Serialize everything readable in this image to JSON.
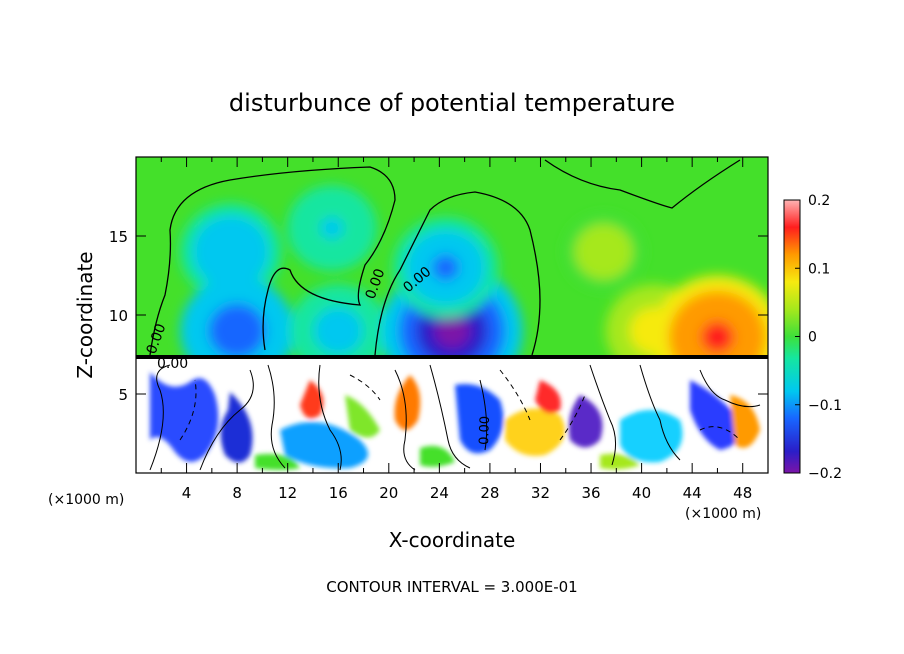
{
  "chart_data": {
    "type": "heatmap",
    "title": "disturbunce of potential temperature",
    "xlabel": "X-coordinate",
    "ylabel": "Z-coordinate",
    "x_unit_label": "(×1000 m)",
    "x_unit_label_right": "(×1000 m)",
    "xlim": [
      0,
      50
    ],
    "ylim": [
      0,
      20
    ],
    "x_ticks": [
      4,
      8,
      12,
      16,
      20,
      24,
      28,
      32,
      36,
      40,
      44,
      48
    ],
    "y_ticks": [
      5,
      10,
      15
    ],
    "colorbar": {
      "min": -0.2,
      "max": 0.2,
      "ticks": [
        0.2,
        0.1,
        0,
        -0.1,
        -0.2
      ],
      "tick_labels": [
        "0.2",
        "0.1",
        "0",
        "−0.1",
        "−0.2"
      ]
    },
    "contour_labels": [
      "0.00",
      "0.00",
      "0.00",
      "0.00",
      "0.00"
    ],
    "footer": "CONTOUR INTERVAL = 3.000E-01",
    "features": {
      "interface_height": 7.3,
      "upper_layer_anomalies": [
        {
          "x": 7.5,
          "z": 14,
          "value": -0.09
        },
        {
          "x": 15.5,
          "z": 15.5,
          "value": -0.06
        },
        {
          "x": 8,
          "z": 9,
          "value": -0.12
        },
        {
          "x": 16,
          "z": 9,
          "value": -0.08
        },
        {
          "x": 25,
          "z": 9,
          "value": -0.19
        },
        {
          "x": 24.5,
          "z": 13,
          "value": -0.1
        },
        {
          "x": 41,
          "z": 9,
          "value": 0.08
        },
        {
          "x": 46,
          "z": 8.6,
          "value": 0.16
        },
        {
          "x": 37,
          "z": 14,
          "value": 0.03
        }
      ]
    }
  }
}
